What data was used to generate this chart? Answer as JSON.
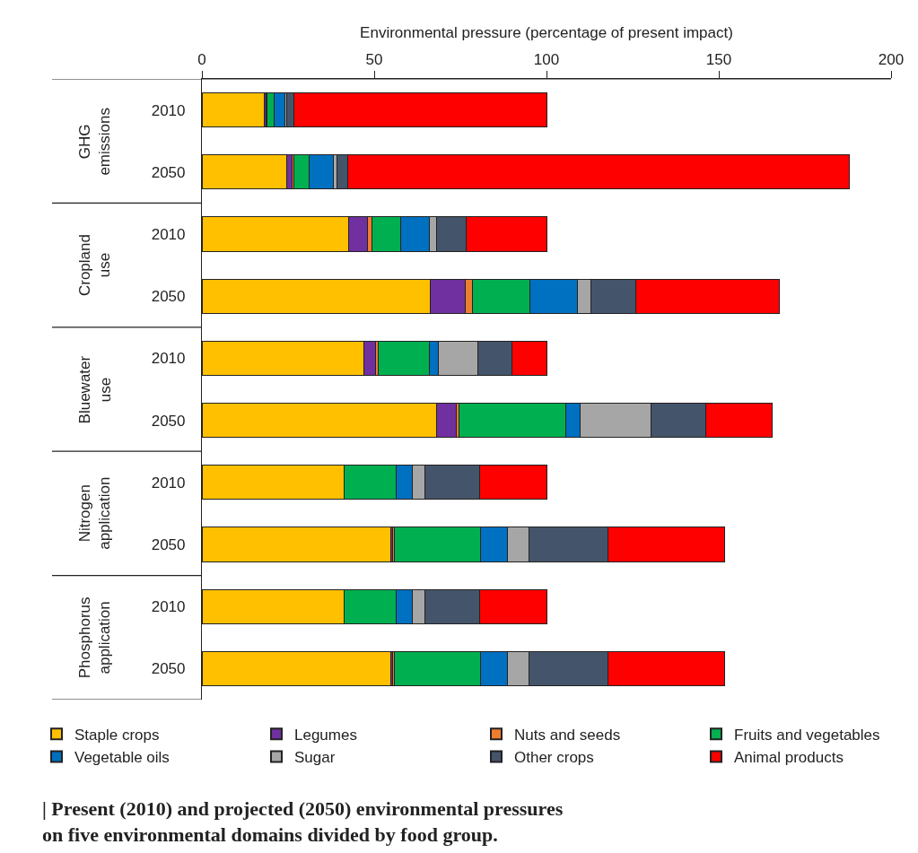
{
  "chart_data": {
    "type": "bar",
    "orientation": "horizontal",
    "stacked": true,
    "xlabel": "Environmental pressure (percentage of present impact)",
    "categories": [
      "2010",
      "2050",
      "2010",
      "2050",
      "2010",
      "2050",
      "2010",
      "2050",
      "2010",
      "2050"
    ],
    "xlim": [
      0,
      200
    ],
    "xticks": [
      0,
      50,
      100,
      150,
      200
    ],
    "legend": "bottom",
    "series": [
      {
        "name": "Staple crops",
        "color": "#ffc000",
        "values": [
          18,
          24.7,
          42.6,
          66.4,
          47,
          68.2,
          41.2,
          54.8,
          41.2,
          54.8
        ]
      },
      {
        "name": "Legumes",
        "color": "#7030a0",
        "values": [
          0.7,
          1.5,
          5.5,
          10,
          3.3,
          5.6,
          null,
          0.6,
          null,
          0.6
        ]
      },
      {
        "name": "Nuts and seeds",
        "color": "#ed7d31",
        "values": [
          0.3,
          0.5,
          1.2,
          2.2,
          0.9,
          0.8,
          null,
          0.5,
          null,
          0.5
        ]
      },
      {
        "name": "Fruits and vegetables",
        "color": "#00b050",
        "values": [
          2,
          4.5,
          8.5,
          16.6,
          14.9,
          31,
          15.2,
          25,
          15.2,
          25
        ]
      },
      {
        "name": "Vegetable oils",
        "color": "#0070c0",
        "values": [
          3,
          7,
          8.3,
          13.7,
          2.6,
          4.2,
          4.6,
          7.7,
          4.6,
          7.7
        ]
      },
      {
        "name": "Sugar",
        "color": "#a6a6a6",
        "values": [
          0.7,
          1.1,
          2,
          4,
          11.3,
          20.6,
          3.6,
          6.2,
          3.6,
          6.2
        ]
      },
      {
        "name": "Other crops",
        "color": "#44546a",
        "values": [
          2,
          3,
          8.5,
          13.1,
          9.9,
          15.8,
          16,
          23,
          16,
          23
        ]
      },
      {
        "name": "Animal products",
        "color": "#ff0000",
        "values": [
          73.3,
          145.5,
          23.4,
          41.5,
          10.1,
          19.4,
          19.4,
          34,
          19.4,
          34
        ]
      }
    ],
    "annotations": [
      "GHG emissions",
      "Cropland use",
      "Bluewater use",
      "Nitrogen application",
      "Phosphorus application",
      "| Present (2010) and projected (2050) environmental pressures on five environmental domains divided by food group."
    ]
  }
}
